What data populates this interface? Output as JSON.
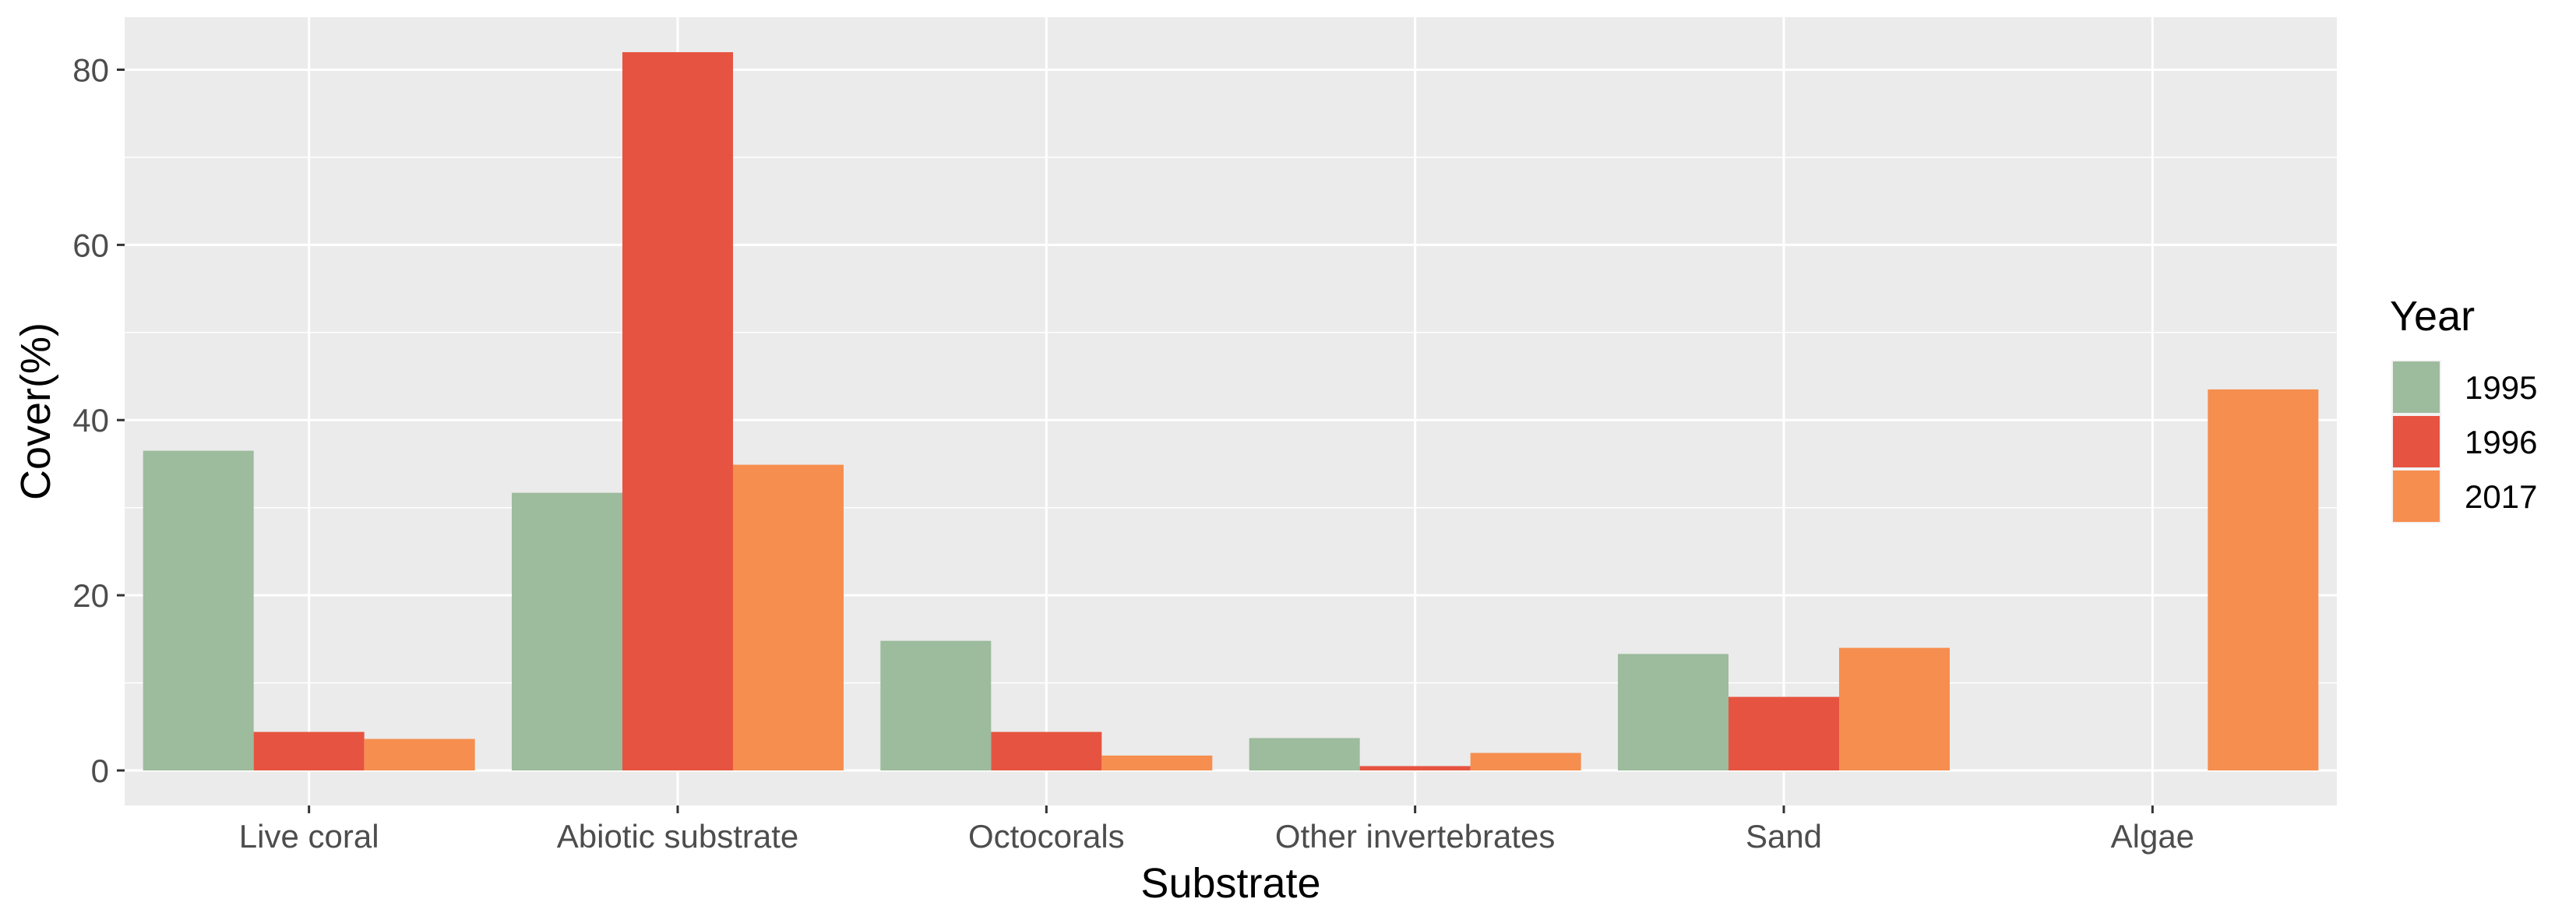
{
  "chart_data": {
    "type": "bar",
    "categories": [
      "Live coral",
      "Abiotic substrate",
      "Octocorals",
      "Other invertebrates",
      "Sand",
      "Algae"
    ],
    "series": [
      {
        "name": "1995",
        "color": "#9dbb9d",
        "values": [
          36.5,
          31.7,
          14.8,
          3.7,
          13.3,
          0
        ]
      },
      {
        "name": "1996",
        "color": "#e65441",
        "values": [
          4.4,
          82.0,
          4.4,
          0.5,
          8.4,
          0
        ]
      },
      {
        "name": "2017",
        "color": "#f68e4f",
        "values": [
          3.6,
          34.9,
          1.7,
          2.0,
          14.0,
          43.5
        ]
      }
    ],
    "xlabel": "Substrate",
    "ylabel": "Cover(%)",
    "ylim": [
      -4,
      86
    ],
    "yticks": [
      0,
      20,
      40,
      60,
      80
    ],
    "legend_title": "Year",
    "legend_position": "right",
    "grid": true,
    "panel_background": "#ebebeb",
    "grid_color": "#ffffff"
  }
}
